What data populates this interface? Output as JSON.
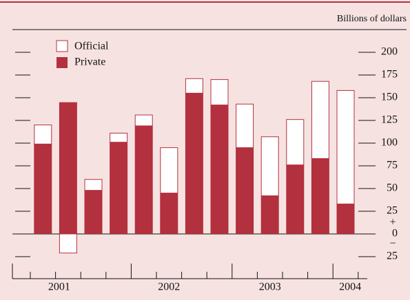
{
  "chart_data": {
    "type": "stacked_bar",
    "unit_label": "Billions of dollars",
    "categories": [
      null,
      null,
      null,
      null,
      null,
      null,
      null,
      null,
      null,
      null,
      null,
      null,
      null
    ],
    "year_labels": [
      "2001",
      "2002",
      "2003",
      "2004"
    ],
    "series": [
      {
        "name": "Private",
        "color": "#b3303e",
        "values": [
          99,
          145,
          48,
          101,
          119,
          45,
          155,
          142,
          95,
          42,
          76,
          83,
          33
        ]
      },
      {
        "name": "Official",
        "color": "#ffffff",
        "values": [
          21,
          -21,
          12,
          10,
          12,
          50,
          16,
          28,
          48,
          65,
          50,
          85,
          125
        ]
      }
    ],
    "ylim": [
      -35,
      200
    ],
    "yticks": [
      {
        "value": -25,
        "label": "25"
      },
      0,
      25,
      50,
      75,
      100,
      125,
      150,
      175,
      200
    ],
    "sign_labels": [
      "+",
      "−"
    ],
    "legend": "upper left"
  }
}
